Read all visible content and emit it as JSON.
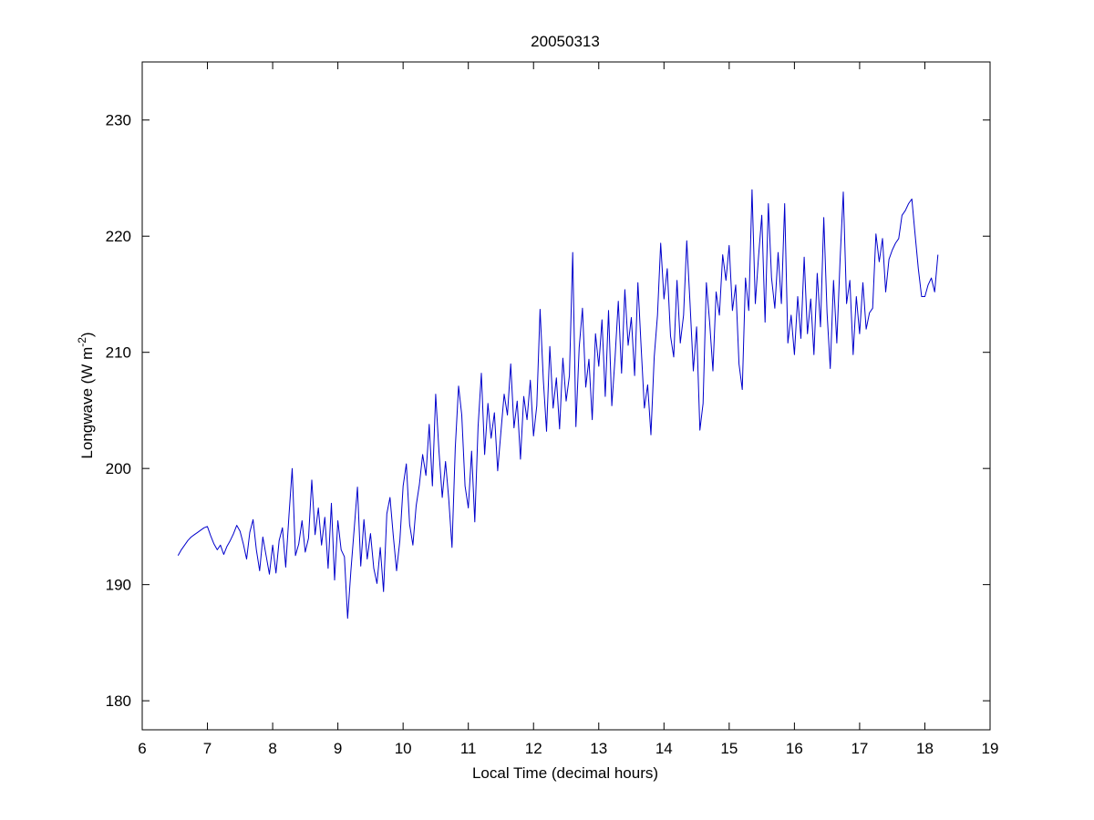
{
  "window": {
    "title": "20050313"
  },
  "chart_data": {
    "type": "line",
    "title": "20050313",
    "xlabel": "Local Time (decimal hours)",
    "ylabel_main": "Longwave (W m",
    "ylabel_sup": "-2",
    "ylabel_close": ")",
    "xlim": [
      6,
      19
    ],
    "ylim": [
      177.5,
      235
    ],
    "xticks": [
      6,
      7,
      8,
      9,
      10,
      11,
      12,
      13,
      14,
      15,
      16,
      17,
      18,
      19
    ],
    "yticks": [
      180,
      190,
      200,
      210,
      220,
      230
    ],
    "grid": false,
    "legend": "none",
    "line_color": "#0000cc",
    "series": [
      {
        "color": "#0000cc",
        "x": [
          6.55,
          6.6,
          6.65,
          6.7,
          6.75,
          6.8,
          6.85,
          6.9,
          6.95,
          7.0,
          7.05,
          7.1,
          7.15,
          7.2,
          7.25,
          7.3,
          7.35,
          7.4,
          7.45,
          7.5,
          7.55,
          7.6,
          7.65,
          7.7,
          7.75,
          7.8,
          7.85,
          7.9,
          7.95,
          8.0,
          8.05,
          8.1,
          8.15,
          8.2,
          8.25,
          8.3,
          8.35,
          8.4,
          8.45,
          8.5,
          8.55,
          8.6,
          8.65,
          8.7,
          8.75,
          8.8,
          8.85,
          8.9,
          8.95,
          9.0,
          9.05,
          9.1,
          9.15,
          9.2,
          9.25,
          9.3,
          9.35,
          9.4,
          9.45,
          9.5,
          9.55,
          9.6,
          9.65,
          9.7,
          9.75,
          9.8,
          9.85,
          9.9,
          9.95,
          10.0,
          10.05,
          10.1,
          10.15,
          10.2,
          10.25,
          10.3,
          10.35,
          10.4,
          10.45,
          10.5,
          10.55,
          10.6,
          10.65,
          10.7,
          10.75,
          10.8,
          10.85,
          10.9,
          10.95,
          11.0,
          11.05,
          11.1,
          11.15,
          11.2,
          11.25,
          11.3,
          11.35,
          11.4,
          11.45,
          11.5,
          11.55,
          11.6,
          11.65,
          11.7,
          11.75,
          11.8,
          11.85,
          11.9,
          11.95,
          12.0,
          12.05,
          12.1,
          12.15,
          12.2,
          12.25,
          12.3,
          12.35,
          12.4,
          12.45,
          12.5,
          12.55,
          12.6,
          12.65,
          12.7,
          12.75,
          12.8,
          12.85,
          12.9,
          12.95,
          13.0,
          13.05,
          13.1,
          13.15,
          13.2,
          13.25,
          13.3,
          13.35,
          13.4,
          13.45,
          13.5,
          13.55,
          13.6,
          13.65,
          13.7,
          13.75,
          13.8,
          13.85,
          13.9,
          13.95,
          14.0,
          14.05,
          14.1,
          14.15,
          14.2,
          14.25,
          14.3,
          14.35,
          14.4,
          14.45,
          14.5,
          14.55,
          14.6,
          14.65,
          14.7,
          14.75,
          14.8,
          14.85,
          14.9,
          14.95,
          15.0,
          15.05,
          15.1,
          15.15,
          15.2,
          15.25,
          15.3,
          15.35,
          15.4,
          15.45,
          15.5,
          15.55,
          15.6,
          15.65,
          15.7,
          15.75,
          15.8,
          15.85,
          15.9,
          15.95,
          16.0,
          16.05,
          16.1,
          16.15,
          16.2,
          16.25,
          16.3,
          16.35,
          16.4,
          16.45,
          16.5,
          16.55,
          16.6,
          16.65,
          16.7,
          16.75,
          16.8,
          16.85,
          16.9,
          16.95,
          17.0,
          17.05,
          17.1,
          17.15,
          17.2,
          17.25,
          17.3,
          17.35,
          17.4,
          17.45,
          17.5,
          17.55,
          17.6,
          17.65,
          17.7,
          17.75,
          17.8,
          17.85,
          17.9,
          17.95,
          18.0,
          18.05,
          18.1,
          18.15,
          18.2
        ],
        "y": [
          192.5,
          193.0,
          193.4,
          193.8,
          194.1,
          194.3,
          194.5,
          194.7,
          194.9,
          195.0,
          194.2,
          193.5,
          193.0,
          193.4,
          192.6,
          193.3,
          193.8,
          194.4,
          195.1,
          194.6,
          193.5,
          192.2,
          194.5,
          195.6,
          193.0,
          191.2,
          194.1,
          192.5,
          190.9,
          193.4,
          191.0,
          193.8,
          194.9,
          191.5,
          196.0,
          200.0,
          192.5,
          193.5,
          195.5,
          192.8,
          194.0,
          199.0,
          194.3,
          196.6,
          193.4,
          195.8,
          191.4,
          197.0,
          190.4,
          195.5,
          193.0,
          192.4,
          187.1,
          191.2,
          194.8,
          198.4,
          191.6,
          195.6,
          192.2,
          194.4,
          191.4,
          190.1,
          193.2,
          189.4,
          196.1,
          197.5,
          194.2,
          191.2,
          193.8,
          198.5,
          200.4,
          195.2,
          193.4,
          196.8,
          198.6,
          201.2,
          199.4,
          203.8,
          198.5,
          206.4,
          201.5,
          197.5,
          200.6,
          197.4,
          193.2,
          201.8,
          207.1,
          204.6,
          198.5,
          196.6,
          201.5,
          195.4,
          203.6,
          208.2,
          201.2,
          205.6,
          202.6,
          204.8,
          199.8,
          203.2,
          206.4,
          204.6,
          209.0,
          203.5,
          205.8,
          200.8,
          206.2,
          204.2,
          207.6,
          202.8,
          205.4,
          213.7,
          207.6,
          203.2,
          210.5,
          205.2,
          207.8,
          203.4,
          209.5,
          205.8,
          208.0,
          218.6,
          203.6,
          210.4,
          213.8,
          207.0,
          209.4,
          204.2,
          211.6,
          208.8,
          212.8,
          206.2,
          213.6,
          205.4,
          209.6,
          214.4,
          208.2,
          215.4,
          210.6,
          213.0,
          208.0,
          216.0,
          210.4,
          205.2,
          207.2,
          202.9,
          209.6,
          213.2,
          219.4,
          214.6,
          217.2,
          211.4,
          209.6,
          216.2,
          210.8,
          213.2,
          219.6,
          214.2,
          208.4,
          212.2,
          203.3,
          205.6,
          216.0,
          212.6,
          208.4,
          215.2,
          213.2,
          218.4,
          216.2,
          219.2,
          213.6,
          215.8,
          209.0,
          206.8,
          216.4,
          213.6,
          224.0,
          214.2,
          218.2,
          221.8,
          212.6,
          222.8,
          216.4,
          213.8,
          218.6,
          214.2,
          222.8,
          210.8,
          213.2,
          209.8,
          214.8,
          211.2,
          218.2,
          211.6,
          214.6,
          209.8,
          216.8,
          212.2,
          221.6,
          213.4,
          208.6,
          216.2,
          210.8,
          218.0,
          223.8,
          214.2,
          216.2,
          209.8,
          214.8,
          211.6,
          216.0,
          212.0,
          213.4,
          213.8,
          220.2,
          217.8,
          219.8,
          215.2,
          218.0,
          218.8,
          219.4,
          219.8,
          221.8,
          222.2,
          222.8,
          223.2,
          220.2,
          217.2,
          214.8,
          214.8,
          215.8,
          216.4,
          215.2,
          218.4
        ]
      }
    ]
  }
}
